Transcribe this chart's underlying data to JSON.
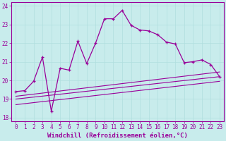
{
  "xlabel": "Windchill (Refroidissement éolien,°C)",
  "bg_color": "#c8ecec",
  "line_color": "#990099",
  "xlim": [
    -0.5,
    23.5
  ],
  "ylim": [
    17.8,
    24.2
  ],
  "yticks": [
    18,
    19,
    20,
    21,
    22,
    23,
    24
  ],
  "xticks": [
    0,
    1,
    2,
    3,
    4,
    5,
    6,
    7,
    8,
    9,
    10,
    11,
    12,
    13,
    14,
    15,
    16,
    17,
    18,
    19,
    20,
    21,
    22,
    23
  ],
  "main_x": [
    0,
    1,
    2,
    3,
    4,
    5,
    6,
    7,
    8,
    9,
    10,
    11,
    12,
    13,
    14,
    15,
    16,
    17,
    18,
    19,
    20,
    21,
    22,
    23
  ],
  "main_y": [
    19.4,
    19.45,
    19.95,
    21.25,
    18.35,
    20.65,
    20.55,
    22.1,
    20.9,
    22.0,
    23.3,
    23.3,
    23.75,
    22.95,
    22.7,
    22.65,
    22.45,
    22.05,
    21.95,
    20.95,
    21.0,
    21.1,
    20.85,
    20.2
  ],
  "line1_x": [
    0,
    23
  ],
  "line1_y": [
    19.15,
    20.45
  ],
  "line2_x": [
    0,
    23
  ],
  "line2_y": [
    19.0,
    20.2
  ],
  "line3_x": [
    0,
    23
  ],
  "line3_y": [
    18.7,
    19.95
  ],
  "grid_color": "#b0dede",
  "tick_label_fontsize": 5.5,
  "xlabel_fontsize": 6.5
}
